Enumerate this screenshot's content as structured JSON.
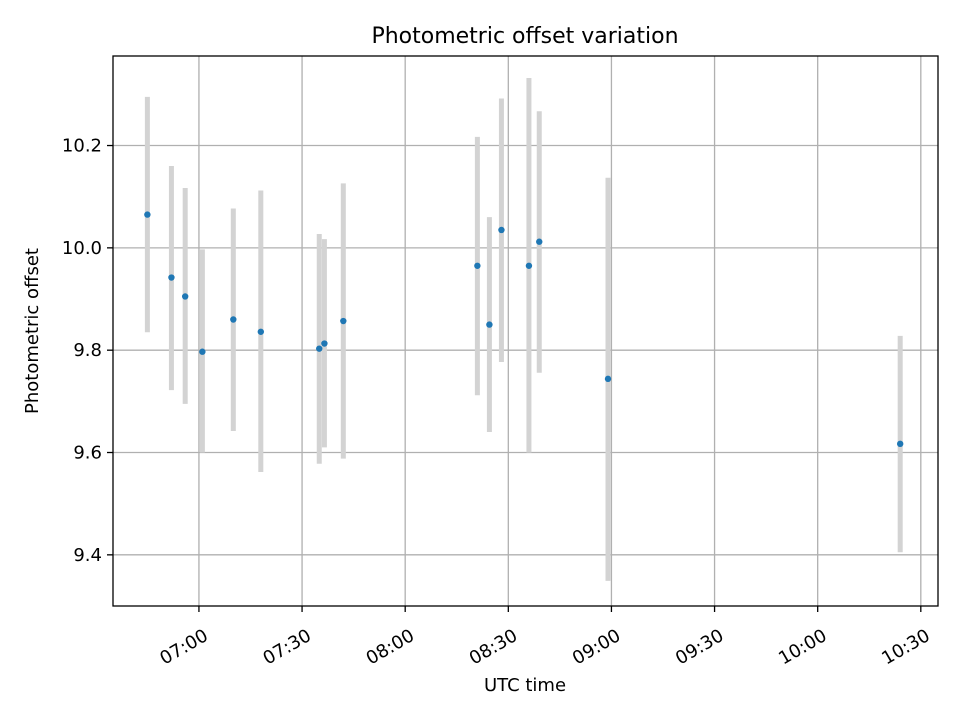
{
  "chart_data": {
    "type": "scatter",
    "title": "Photometric offset variation",
    "xlabel": "UTC time",
    "ylabel": "Photometric offset",
    "x_ticks": [
      "07:00",
      "07:30",
      "08:00",
      "08:30",
      "09:00",
      "09:30",
      "10:00",
      "10:30"
    ],
    "y_ticks": [
      "9.4",
      "9.6",
      "9.8",
      "10.0",
      "10.2"
    ],
    "xlim": [
      "06:35",
      "10:35"
    ],
    "ylim": [
      9.3,
      10.375
    ],
    "grid": true,
    "error_bar_color": "#d3d3d3",
    "marker_color": "#1f77b4",
    "series": [
      {
        "points": [
          {
            "time": "06:45",
            "value": 10.065,
            "low": 9.835,
            "high": 10.295
          },
          {
            "time": "06:52",
            "value": 9.942,
            "low": 9.722,
            "high": 10.16
          },
          {
            "time": "06:56",
            "value": 9.905,
            "low": 9.695,
            "high": 10.117
          },
          {
            "time": "07:01",
            "value": 9.797,
            "low": 9.6,
            "high": 9.997
          },
          {
            "time": "07:10",
            "value": 9.86,
            "low": 9.642,
            "high": 10.077
          },
          {
            "time": "07:18",
            "value": 9.836,
            "low": 9.562,
            "high": 10.112
          },
          {
            "time": "07:35",
            "value": 9.803,
            "low": 9.578,
            "high": 10.027
          },
          {
            "time": "07:36.5",
            "value": 9.813,
            "low": 9.61,
            "high": 10.017
          },
          {
            "time": "07:42",
            "value": 9.857,
            "low": 9.588,
            "high": 10.126
          },
          {
            "time": "08:21",
            "value": 9.965,
            "low": 9.712,
            "high": 10.217
          },
          {
            "time": "08:24.5",
            "value": 9.85,
            "low": 9.64,
            "high": 10.06
          },
          {
            "time": "08:28",
            "value": 10.035,
            "low": 9.777,
            "high": 10.292
          },
          {
            "time": "08:36",
            "value": 9.965,
            "low": 9.6,
            "high": 10.332
          },
          {
            "time": "08:39",
            "value": 10.012,
            "low": 9.756,
            "high": 10.267
          },
          {
            "time": "08:59",
            "value": 9.744,
            "low": 9.349,
            "high": 10.137
          },
          {
            "time": "10:24",
            "value": 9.617,
            "low": 9.405,
            "high": 9.828
          }
        ]
      }
    ]
  }
}
